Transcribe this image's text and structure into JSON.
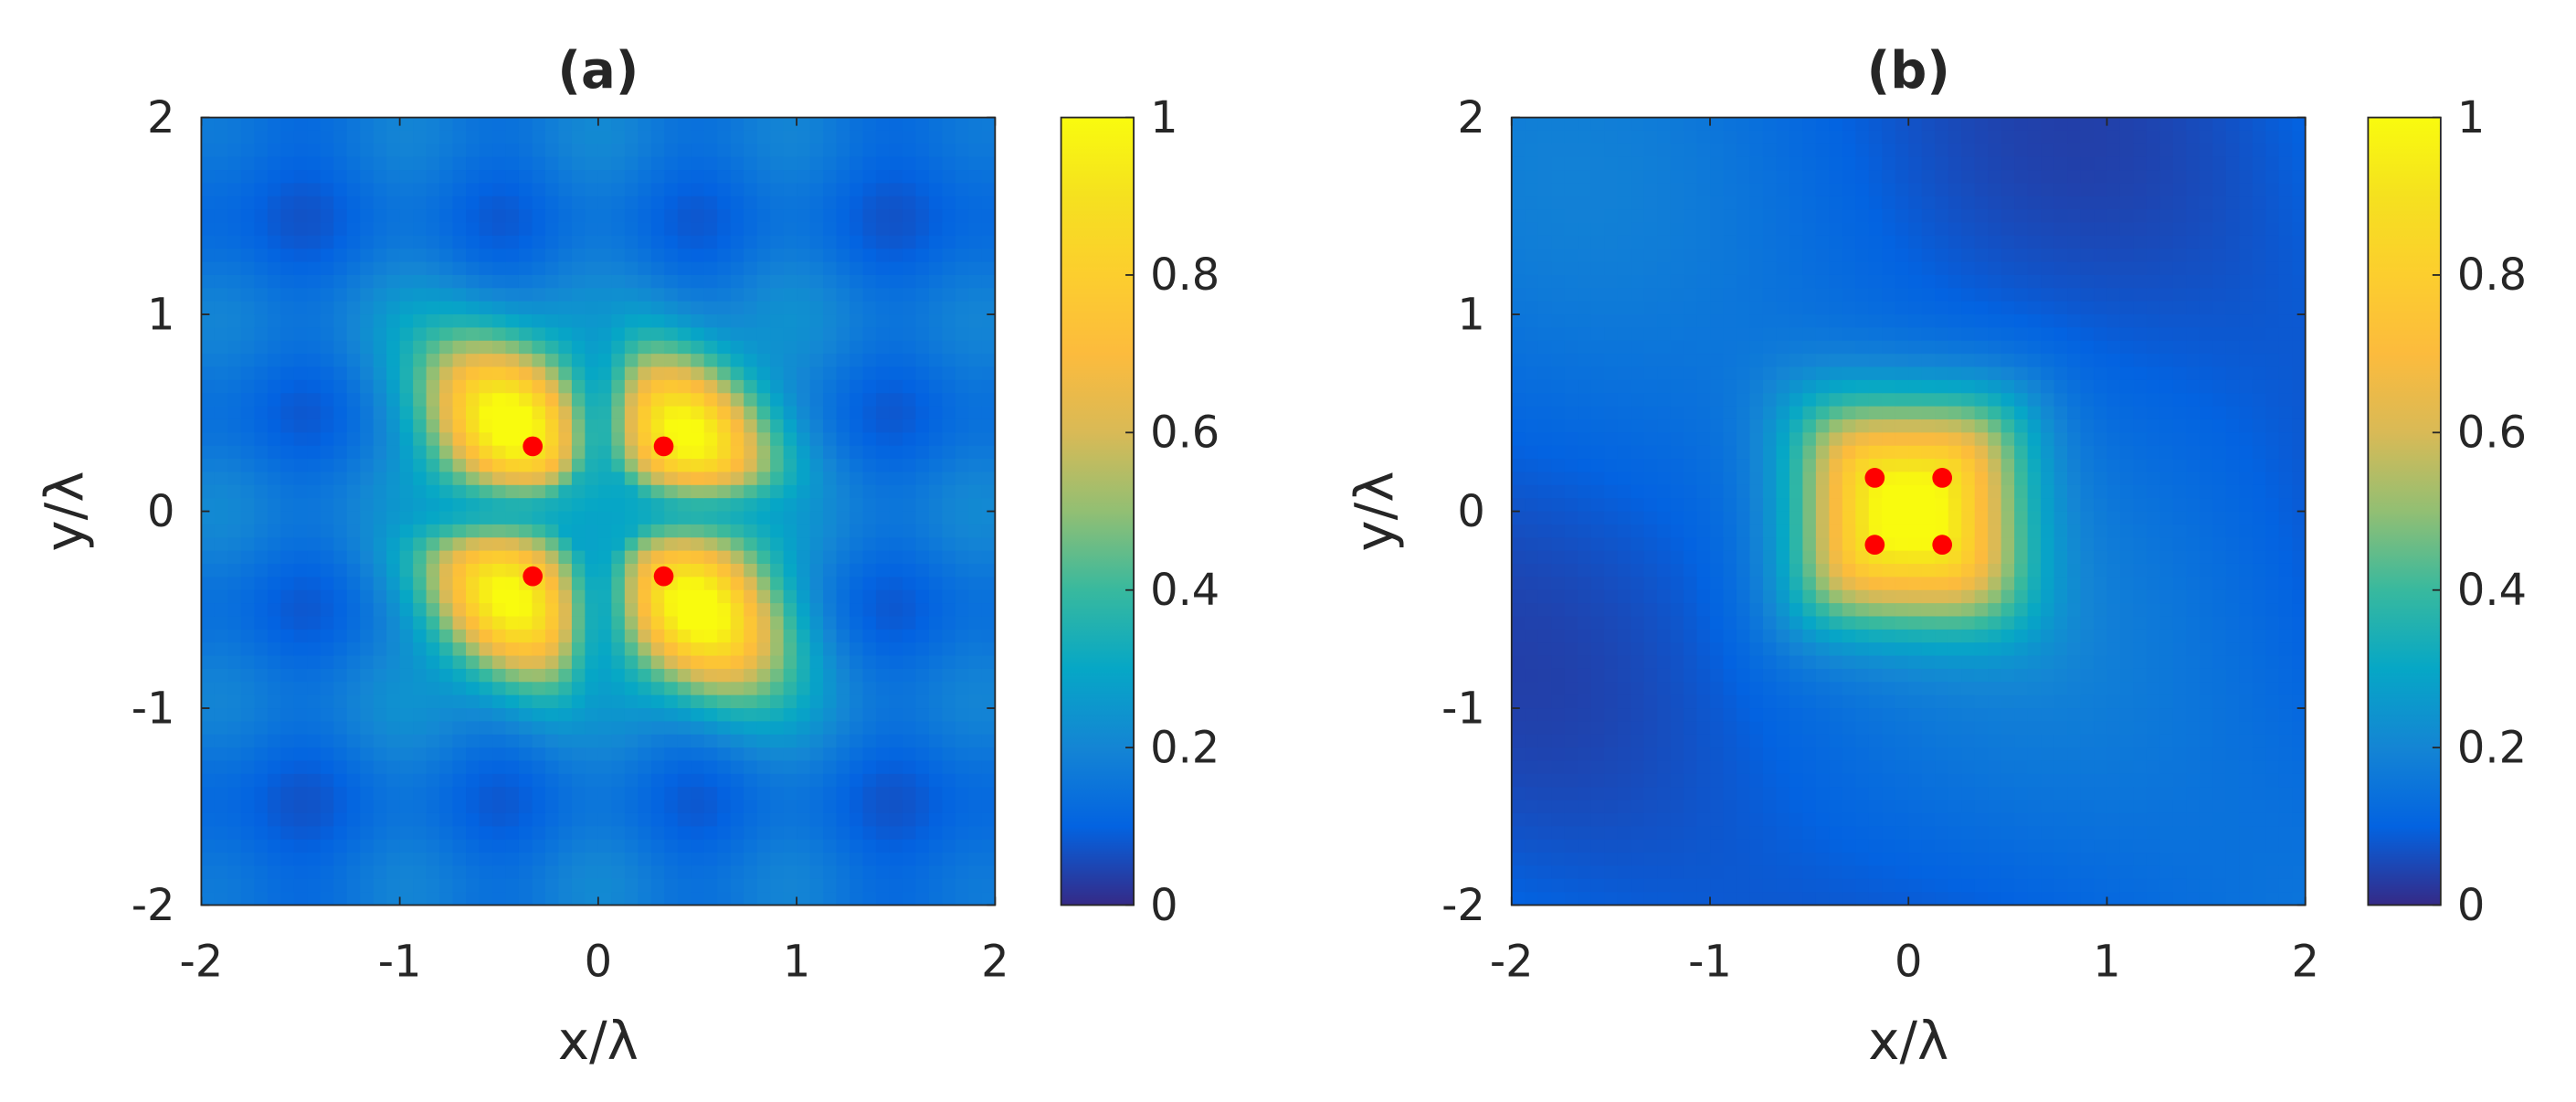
{
  "chart_data": [
    {
      "type": "heatmap",
      "title": "(a)",
      "xlabel": "x/λ",
      "ylabel": "y/λ",
      "xlim": [
        -2,
        2
      ],
      "ylim": [
        -2,
        2
      ],
      "xticks": [
        "-2",
        "-1",
        "0",
        "1",
        "2"
      ],
      "yticks": [
        "2",
        "1",
        "0",
        "-1",
        "-2"
      ],
      "colorbar": {
        "range": [
          0,
          1
        ],
        "ticks": [
          "1",
          "0.8",
          "0.6",
          "0.4",
          "0.2",
          "0"
        ]
      },
      "colormap": "parula",
      "field": {
        "pattern": "four-lobe",
        "peaks": [
          {
            "x": -0.45,
            "y": 0.45,
            "value": 1.0
          },
          {
            "x": 0.45,
            "y": 0.4,
            "value": 0.95
          },
          {
            "x": -0.45,
            "y": -0.45,
            "value": 0.95
          },
          {
            "x": 0.5,
            "y": -0.5,
            "value": 1.0
          }
        ],
        "background_level": 0.2
      },
      "markers": {
        "color": "#ff0000",
        "points": [
          {
            "x": -0.33,
            "y": 0.33
          },
          {
            "x": 0.33,
            "y": 0.33
          },
          {
            "x": -0.33,
            "y": -0.33
          },
          {
            "x": 0.33,
            "y": -0.33
          }
        ]
      }
    },
    {
      "type": "heatmap",
      "title": "(b)",
      "xlabel": "x/λ",
      "ylabel": "y/λ",
      "xlim": [
        -2,
        2
      ],
      "ylim": [
        -2,
        2
      ],
      "xticks": [
        "-2",
        "-1",
        "0",
        "1",
        "2"
      ],
      "yticks": [
        "2",
        "1",
        "0",
        "-1",
        "-2"
      ],
      "colorbar": {
        "range": [
          0,
          1
        ],
        "ticks": [
          "1",
          "0.8",
          "0.6",
          "0.4",
          "0.2",
          "0"
        ]
      },
      "colormap": "parula",
      "field": {
        "pattern": "single-square",
        "peaks": [
          {
            "x": 0.0,
            "y": 0.0,
            "value": 0.9
          }
        ],
        "background_level": 0.15
      },
      "markers": {
        "color": "#ff0000",
        "points": [
          {
            "x": -0.17,
            "y": 0.17
          },
          {
            "x": 0.17,
            "y": 0.17
          },
          {
            "x": -0.17,
            "y": -0.17
          },
          {
            "x": 0.17,
            "y": -0.17
          }
        ]
      }
    }
  ]
}
